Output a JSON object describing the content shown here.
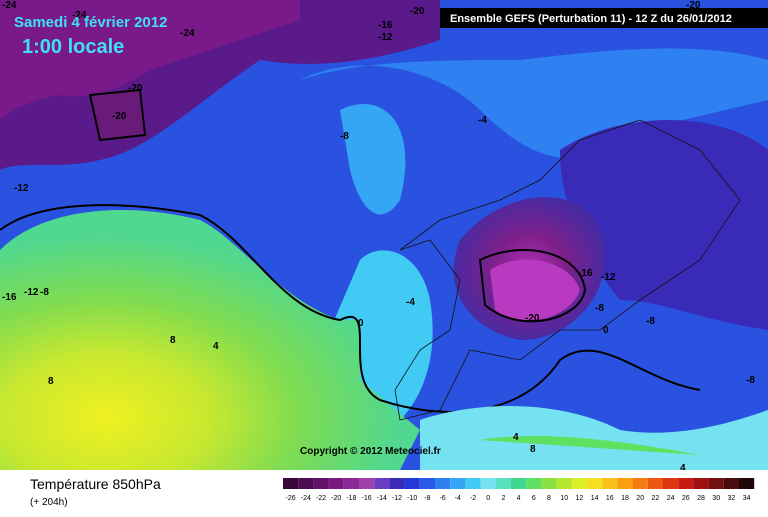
{
  "header": {
    "title": "Samedi 4 février 2012",
    "time": "1:00 locale",
    "model": "Ensemble GEFS (Perturbation 11)  -  12 Z du 26/01/2012"
  },
  "copyright": "Copyright © 2012 Meteociel.fr",
  "footer": {
    "parameter": "Température 850hPa",
    "lead": "(+ 204h)"
  },
  "legend": {
    "labels": [
      "-26",
      "-24",
      "-22",
      "-20",
      "-18",
      "-16",
      "-14",
      "-12",
      "-10",
      "-8",
      "-6",
      "-4",
      "-2",
      "0",
      "2",
      "4",
      "6",
      "8",
      "10",
      "12",
      "14",
      "16",
      "18",
      "20",
      "22",
      "24",
      "26",
      "28",
      "30",
      "32",
      "34"
    ],
    "colors": [
      "#3a0838",
      "#4e0c52",
      "#62106a",
      "#761a80",
      "#8a2896",
      "#a040ac",
      "#6a3cc0",
      "#3a2ab8",
      "#2438d8",
      "#2a5ae8",
      "#2f80f0",
      "#34a6f4",
      "#40caf4",
      "#74e2f0",
      "#5ae0c0",
      "#40d890",
      "#60e060",
      "#8ce040",
      "#b4e830",
      "#dcf028",
      "#f4e020",
      "#f8c018",
      "#f8a010",
      "#f47c10",
      "#ec5810",
      "#e03410",
      "#c81a10",
      "#a01010",
      "#741010",
      "#4a0c0c",
      "#200808"
    ]
  },
  "contour_labels": [
    "-24",
    "-24",
    "-24",
    "-20",
    "-20",
    "-16",
    "-12",
    "-20",
    "-20",
    "-8",
    "-4",
    "-12",
    "-16",
    "-12",
    "-8",
    "-16",
    "-12",
    "-20",
    "-8",
    "-8",
    "-8",
    "0",
    "0",
    "-4",
    "8",
    "4",
    "8",
    "4",
    "8",
    "4"
  ]
}
